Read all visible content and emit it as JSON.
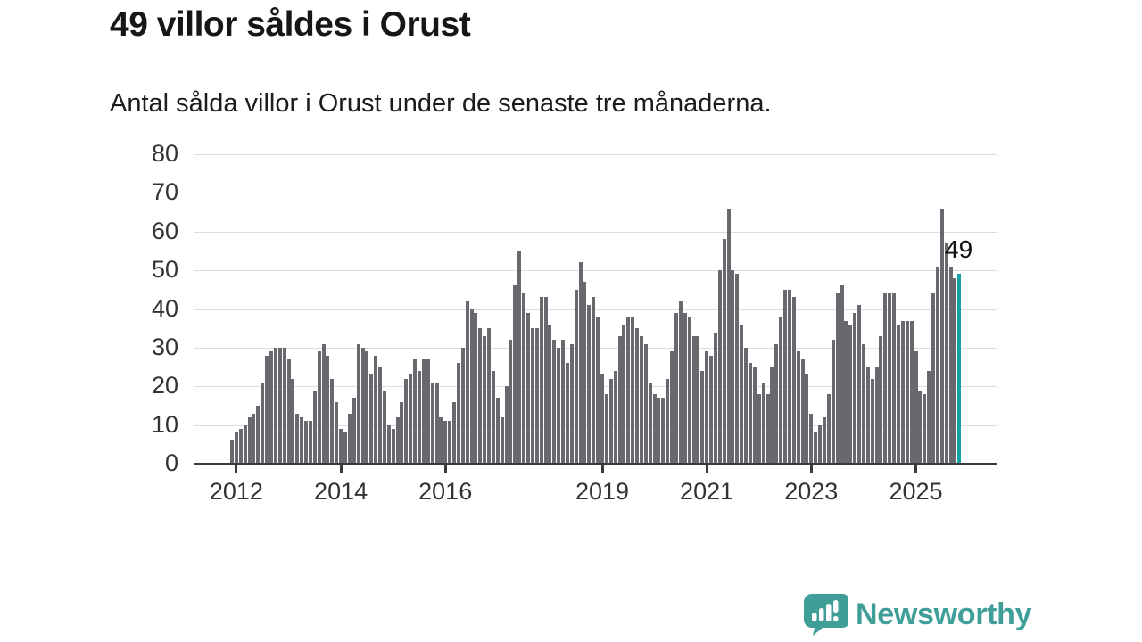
{
  "header": {
    "title": "49 villor såldes i Orust",
    "subtitle": "Antal sålda villor i Orust under de senaste tre månaderna."
  },
  "chart_data": {
    "type": "bar",
    "title": "49 villor såldes i Orust",
    "subtitle": "Antal sålda villor i Orust under de senaste tre månaderna.",
    "xlabel": "",
    "ylabel": "",
    "ylim": [
      0,
      80
    ],
    "y_ticks": [
      0,
      10,
      20,
      30,
      40,
      50,
      60,
      70,
      80
    ],
    "grid": true,
    "x_tick_labels": [
      "2012",
      "2014",
      "2016",
      "2019",
      "2021",
      "2023",
      "2025"
    ],
    "x_tick_indices": [
      1,
      25,
      49,
      85,
      109,
      133,
      157
    ],
    "period": "monthly rolling 3-month sums, Dec 2011 - latest",
    "values": [
      6,
      8,
      9,
      10,
      12,
      13,
      15,
      21,
      28,
      29,
      30,
      30,
      30,
      27,
      22,
      13,
      12,
      11,
      11,
      19,
      29,
      31,
      28,
      22,
      16,
      9,
      8,
      13,
      17,
      31,
      30,
      29,
      23,
      28,
      25,
      19,
      10,
      9,
      12,
      16,
      22,
      23,
      27,
      24,
      27,
      27,
      21,
      21,
      12,
      11,
      11,
      16,
      26,
      30,
      42,
      40,
      39,
      35,
      33,
      35,
      24,
      17,
      12,
      20,
      32,
      46,
      55,
      44,
      39,
      35,
      35,
      43,
      43,
      36,
      32,
      30,
      32,
      26,
      31,
      45,
      52,
      47,
      41,
      43,
      38,
      23,
      18,
      22,
      24,
      33,
      36,
      38,
      38,
      35,
      33,
      31,
      21,
      18,
      17,
      17,
      22,
      29,
      39,
      42,
      39,
      38,
      33,
      33,
      24,
      29,
      28,
      34,
      50,
      58,
      66,
      50,
      49,
      36,
      30,
      26,
      25,
      18,
      21,
      18,
      25,
      31,
      38,
      45,
      45,
      43,
      29,
      27,
      23,
      13,
      8,
      10,
      12,
      18,
      32,
      44,
      46,
      37,
      36,
      39,
      41,
      31,
      25,
      22,
      25,
      33,
      44,
      44,
      44,
      36,
      37,
      37,
      37,
      29,
      19,
      18,
      24,
      44,
      51,
      66,
      57,
      51,
      48,
      49
    ],
    "highlight_last_index": 167,
    "highlight_last_value": 49,
    "annotation": "49",
    "colors": {
      "bar": "#68686e",
      "highlight": "#13a1a3",
      "grid": "#dcdcdc",
      "axis": "#3a3a3a",
      "text": "#333333"
    }
  },
  "footer": {
    "brand": "Newsworthy",
    "logo_icon": "speech-bubble-bar-chart-icon",
    "logo_color": "#3f9e98"
  }
}
